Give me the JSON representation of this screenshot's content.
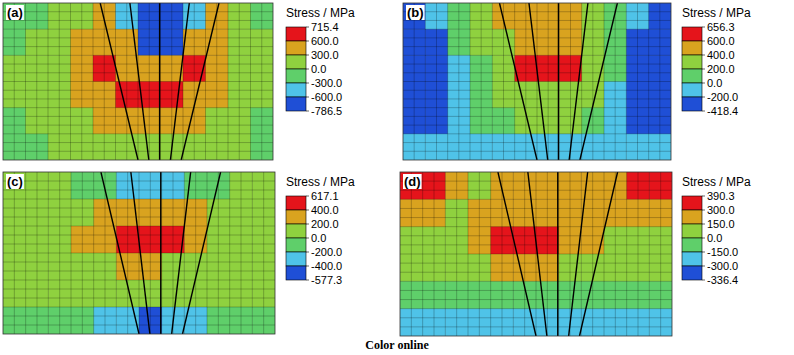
{
  "caption": "Color online",
  "chart_data": [
    {
      "type": "heatmap",
      "title": "(a)",
      "colorbar_title": "Stress / MPa",
      "zticks": [
        {
          "value": 715.4,
          "label": "715.4"
        },
        {
          "value": 600,
          "label": "600.0"
        },
        {
          "value": 300,
          "label": "300.0"
        },
        {
          "value": 0,
          "label": "0.0"
        },
        {
          "value": -300,
          "label": "-300.0"
        },
        {
          "value": -600,
          "label": "-600.0"
        },
        {
          "value": -786.5,
          "label": "-786.5"
        }
      ],
      "colors": [
        "#e5141b",
        "#d9a31f",
        "#8fd13f",
        "#5fcf6a",
        "#4fc3e8",
        "#1f4fd6"
      ],
      "cells": [
        [
          -100,
          -50,
          50,
          100,
          400,
          -400,
          -700,
          -700,
          -500,
          400,
          100,
          -50
        ],
        [
          -50,
          0,
          100,
          400,
          450,
          500,
          -650,
          -650,
          450,
          450,
          150,
          0
        ],
        [
          0,
          50,
          150,
          400,
          650,
          450,
          450,
          450,
          650,
          400,
          150,
          0
        ],
        [
          0,
          50,
          100,
          350,
          450,
          650,
          650,
          650,
          400,
          350,
          100,
          0
        ],
        [
          -50,
          0,
          50,
          100,
          350,
          400,
          450,
          400,
          350,
          100,
          50,
          -50
        ],
        [
          -100,
          -50,
          0,
          50,
          100,
          200,
          250,
          200,
          100,
          50,
          0,
          -50
        ]
      ]
    },
    {
      "type": "heatmap",
      "title": "(b)",
      "colorbar_title": "Stress / MPa",
      "zticks": [
        {
          "value": 656.3,
          "label": "656.3"
        },
        {
          "value": 600,
          "label": "600.0"
        },
        {
          "value": 400,
          "label": "400.0"
        },
        {
          "value": 200,
          "label": "200.0"
        },
        {
          "value": 0,
          "label": "0.0"
        },
        {
          "value": -200,
          "label": "-200.0"
        },
        {
          "value": -418.4,
          "label": "-418.4"
        }
      ],
      "colors": [
        "#e5141b",
        "#d9a31f",
        "#8fd13f",
        "#5fcf6a",
        "#4fc3e8",
        "#1f4fd6"
      ],
      "cells": [
        [
          -300,
          -150,
          100,
          250,
          450,
          450,
          450,
          450,
          300,
          100,
          -150,
          -300
        ],
        [
          -350,
          -250,
          50,
          250,
          300,
          450,
          450,
          450,
          300,
          50,
          -250,
          -350
        ],
        [
          -400,
          -300,
          -100,
          150,
          350,
          620,
          630,
          620,
          350,
          50,
          -300,
          -400
        ],
        [
          -400,
          -300,
          -150,
          100,
          300,
          350,
          350,
          300,
          200,
          -100,
          -300,
          -400
        ],
        [
          -350,
          -250,
          -100,
          50,
          150,
          250,
          250,
          200,
          100,
          -100,
          -250,
          -350
        ],
        [
          -150,
          -150,
          -150,
          -100,
          -100,
          -100,
          -100,
          -100,
          -100,
          -150,
          -150,
          -150
        ]
      ]
    },
    {
      "type": "heatmap",
      "title": "(c)",
      "colorbar_title": "Stress / MPa",
      "zticks": [
        {
          "value": 617.1,
          "label": "617.1"
        },
        {
          "value": 400,
          "label": "400.0"
        },
        {
          "value": 200,
          "label": "200.0"
        },
        {
          "value": 0,
          "label": "0.0"
        },
        {
          "value": -200,
          "label": "-200.0"
        },
        {
          "value": -400,
          "label": "-400.0"
        },
        {
          "value": -577.3,
          "label": "-577.3"
        }
      ],
      "colors": [
        "#e5141b",
        "#d9a31f",
        "#8fd13f",
        "#5fcf6a",
        "#4fc3e8",
        "#1f4fd6"
      ],
      "cells": [
        [
          50,
          50,
          100,
          -50,
          -100,
          -250,
          -250,
          -250,
          -100,
          -50,
          100,
          50
        ],
        [
          50,
          100,
          100,
          150,
          250,
          300,
          300,
          300,
          250,
          100,
          100,
          50
        ],
        [
          50,
          100,
          150,
          200,
          300,
          550,
          600,
          500,
          300,
          150,
          100,
          50
        ],
        [
          50,
          50,
          100,
          150,
          150,
          250,
          250,
          150,
          150,
          100,
          50,
          50
        ],
        [
          0,
          50,
          50,
          100,
          100,
          150,
          150,
          100,
          100,
          50,
          50,
          0
        ],
        [
          -50,
          -100,
          -100,
          -150,
          -250,
          -250,
          -450,
          -250,
          -250,
          -150,
          -100,
          -50
        ]
      ]
    },
    {
      "type": "heatmap",
      "title": "(d)",
      "colorbar_title": "Stress / MPa",
      "zticks": [
        {
          "value": 390.3,
          "label": "390.3"
        },
        {
          "value": 300,
          "label": "300.0"
        },
        {
          "value": 150,
          "label": "150.0"
        },
        {
          "value": 0,
          "label": "0.0"
        },
        {
          "value": -150,
          "label": "-150.0"
        },
        {
          "value": -300,
          "label": "-300.0"
        },
        {
          "value": -336.4,
          "label": "-336.4"
        }
      ],
      "colors": [
        "#e5141b",
        "#d9a31f",
        "#8fd13f",
        "#5fcf6a",
        "#4fc3e8",
        "#1f4fd6"
      ],
      "cells": [
        [
          350,
          320,
          200,
          100,
          150,
          200,
          200,
          250,
          200,
          250,
          320,
          320
        ],
        [
          250,
          150,
          100,
          200,
          250,
          250,
          250,
          250,
          200,
          150,
          200,
          150
        ],
        [
          100,
          50,
          100,
          200,
          320,
          330,
          320,
          250,
          150,
          100,
          50,
          50
        ],
        [
          50,
          0,
          50,
          100,
          150,
          200,
          150,
          100,
          50,
          0,
          0,
          50
        ],
        [
          -100,
          -100,
          -100,
          -100,
          -50,
          -50,
          -50,
          -100,
          -100,
          -100,
          -100,
          -100
        ],
        [
          -200,
          -200,
          -200,
          -200,
          -200,
          -200,
          -200,
          -200,
          -200,
          -200,
          -200,
          -200
        ]
      ]
    }
  ]
}
